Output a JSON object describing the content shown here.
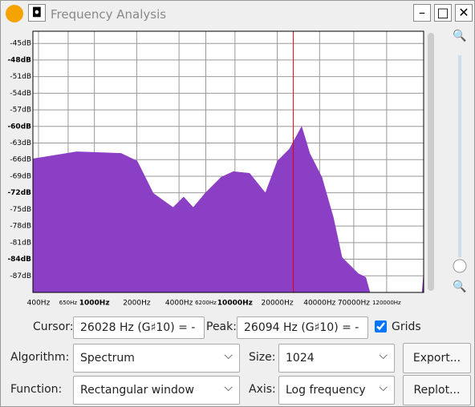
{
  "window": {
    "title": "Frequency Analysis"
  },
  "chart_data": {
    "type": "area",
    "x": [
      365,
      748,
      1545,
      2010,
      2615,
      3630,
      4310,
      5050,
      6150,
      8000,
      9740,
      12670,
      16480,
      20080,
      24480,
      29800,
      33960,
      41400,
      50000,
      57600,
      75000,
      85000,
      91000,
      215000,
      220000
    ],
    "values": [
      -65.9,
      -64.6,
      -64.9,
      -66.3,
      -72.1,
      -74.7,
      -72.8,
      -74.7,
      -72.1,
      -69.2,
      -68.2,
      -68.5,
      -72.1,
      -66.3,
      -64.1,
      -60.1,
      -64.9,
      -69.2,
      -76.5,
      -83.7,
      -86.6,
      -87.3,
      -90,
      -90,
      -87
    ],
    "color": "#8b3fc5",
    "xlim": [
      365,
      220000
    ],
    "ylim": [
      -90,
      -42.8
    ],
    "log_x": true,
    "grid": true,
    "cursor": 26028,
    "xticks": [
      {
        "value": 400,
        "label": "400Hz"
      },
      {
        "value": 650,
        "label": "650Hz"
      },
      {
        "value": 1000,
        "label": "1000Hz"
      },
      {
        "value": 2000,
        "label": "2000Hz"
      },
      {
        "value": 4000,
        "label": "4000Hz"
      },
      {
        "value": 6200,
        "label": "6200Hz"
      },
      {
        "value": 10000,
        "label": "10000Hz"
      },
      {
        "value": 20000,
        "label": "20000Hz"
      },
      {
        "value": 40000,
        "label": "40000Hz"
      },
      {
        "value": 70000,
        "label": "70000Hz"
      },
      {
        "value": 120000,
        "label": "120000Hz"
      }
    ],
    "yticks": [
      {
        "value": -45,
        "label": "-45dB"
      },
      {
        "value": -48,
        "label": "-48dB"
      },
      {
        "value": -51,
        "label": "-51dB"
      },
      {
        "value": -54,
        "label": "-54dB"
      },
      {
        "value": -57,
        "label": "-57dB"
      },
      {
        "value": -60,
        "label": "-60dB"
      },
      {
        "value": -63,
        "label": "-63dB"
      },
      {
        "value": -66,
        "label": "-66dB"
      },
      {
        "value": -69,
        "label": "-69dB"
      },
      {
        "value": -72,
        "label": "-72dB"
      },
      {
        "value": -75,
        "label": "-75dB"
      },
      {
        "value": -78,
        "label": "-78dB"
      },
      {
        "value": -81,
        "label": "-81dB"
      },
      {
        "value": -84,
        "label": "-84dB"
      },
      {
        "value": -87,
        "label": "-87dB"
      }
    ]
  },
  "controls": {
    "cursor_label": "Cursor:",
    "cursor_value": "26028 Hz (G♯10) = -",
    "peak_label": "Peak:",
    "peak_value": "26094 Hz (G♯10) = -",
    "grids_label": "Grids",
    "grids_checked": true,
    "algorithm_label": "Algorithm:",
    "algorithm": "Spectrum",
    "size_label": "Size:",
    "size": "1024",
    "export": "Export...",
    "function_label": "Function:",
    "function": "Rectangular window",
    "axis_label": "Axis:",
    "axis": "Log frequency",
    "replot": "Replot..."
  }
}
